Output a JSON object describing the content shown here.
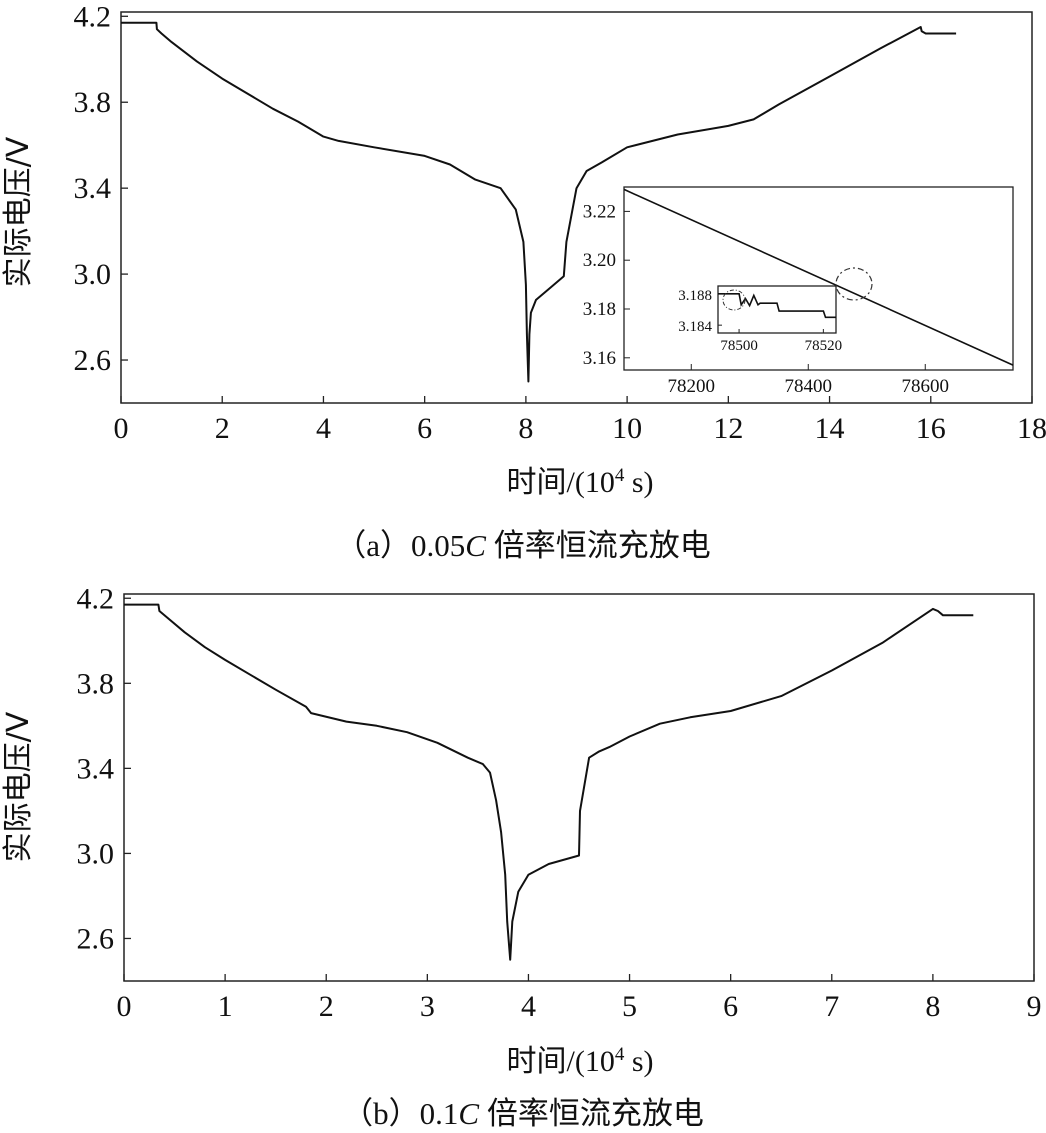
{
  "chart_data": [
    {
      "type": "line",
      "panel": "a",
      "caption": "（a）0.05C 倍率恒流充放电",
      "caption_parts": {
        "open": "（a）",
        "rate": "0.05",
        "c": "C",
        "rest": " 倍率恒流充放电"
      },
      "xlabel": "时间/(10⁴ s)",
      "xlabel_parts": {
        "pre": "时间/(10",
        "sup": "4",
        "post": " s)"
      },
      "ylabel": "实际电压/V",
      "xlim": [
        0,
        18
      ],
      "ylim": [
        2.4,
        4.22
      ],
      "x_ticks": [
        "0",
        "2",
        "4",
        "6",
        "8",
        "10",
        "12",
        "14",
        "16",
        "18"
      ],
      "y_ticks": [
        "4.2",
        "3.8",
        "3.4",
        "3.0",
        "2.6"
      ],
      "series": [
        {
          "x": [
            0.0,
            0.7,
            0.71,
            0.8,
            1.0,
            1.5,
            2.0,
            2.5,
            3.0,
            3.5,
            4.0,
            4.3,
            5.0,
            6.0,
            6.5,
            7.0,
            7.5,
            7.8,
            7.95,
            8.0,
            8.02,
            8.05,
            8.07,
            8.1,
            8.2,
            8.5,
            8.75,
            8.8,
            9.0,
            9.2,
            9.5,
            10.0,
            11.0,
            12.0,
            12.5,
            13.0,
            14.0,
            15.0,
            15.8,
            15.82,
            15.9,
            16.5
          ],
          "y": [
            4.17,
            4.17,
            4.14,
            4.12,
            4.08,
            3.99,
            3.91,
            3.84,
            3.77,
            3.71,
            3.64,
            3.62,
            3.59,
            3.55,
            3.51,
            3.44,
            3.4,
            3.3,
            3.15,
            2.95,
            2.72,
            2.5,
            2.72,
            2.82,
            2.88,
            2.94,
            2.99,
            3.15,
            3.4,
            3.48,
            3.52,
            3.59,
            3.65,
            3.69,
            3.72,
            3.79,
            3.92,
            4.05,
            4.15,
            4.13,
            4.12,
            4.12
          ]
        }
      ],
      "inset": {
        "xlim": [
          78085,
          78750
        ],
        "ylim": [
          3.155,
          3.23
        ],
        "x_ticks": [
          "78200",
          "78400",
          "78600"
        ],
        "y_ticks": [
          "3.22",
          "3.20",
          "3.18",
          "3.16"
        ],
        "series": [
          {
            "x": [
              78085,
              78750
            ],
            "y": [
              3.229,
              3.157
            ]
          }
        ],
        "inner": {
          "xlim": [
            78495,
            78523
          ],
          "ylim": [
            3.183,
            3.189
          ],
          "x_ticks": [
            "78500",
            "78520"
          ],
          "y_ticks": [
            "3.188",
            "3.184"
          ],
          "series": [
            {
              "x": [
                78495,
                78500,
                78500.5,
                78501.5,
                78502.5,
                78503.5,
                78504.5,
                78505,
                78509,
                78509.5,
                78520,
                78520.5,
                78523
              ],
              "y": [
                3.188,
                3.188,
                3.1866,
                3.1874,
                3.1865,
                3.1878,
                3.1866,
                3.1868,
                3.1868,
                3.1858,
                3.1858,
                3.185,
                3.185
              ]
            }
          ]
        }
      }
    },
    {
      "type": "line",
      "panel": "b",
      "caption": "（b）0.1C 倍率恒流充放电",
      "caption_parts": {
        "open": "（b）",
        "rate": "0.1",
        "c": "C",
        "rest": " 倍率恒流充放电"
      },
      "xlabel": "时间/(10⁴ s)",
      "xlabel_parts": {
        "pre": "时间/(10",
        "sup": "4",
        "post": " s)"
      },
      "ylabel": "实际电压/V",
      "xlim": [
        0,
        9
      ],
      "ylim": [
        2.4,
        4.22
      ],
      "x_ticks": [
        "0",
        "1",
        "2",
        "3",
        "4",
        "5",
        "6",
        "7",
        "8",
        "9"
      ],
      "y_ticks": [
        "4.2",
        "3.8",
        "3.4",
        "3.0",
        "2.6"
      ],
      "series": [
        {
          "x": [
            0.0,
            0.34,
            0.35,
            0.45,
            0.6,
            0.8,
            1.0,
            1.25,
            1.5,
            1.8,
            1.85,
            2.2,
            2.5,
            2.8,
            3.1,
            3.4,
            3.55,
            3.62,
            3.68,
            3.73,
            3.77,
            3.79,
            3.82,
            3.84,
            3.9,
            4.0,
            4.2,
            4.5,
            4.51,
            4.6,
            4.7,
            4.8,
            5.0,
            5.3,
            5.6,
            6.0,
            6.5,
            7.0,
            7.5,
            8.0,
            8.05,
            8.1,
            8.4
          ],
          "y": [
            4.17,
            4.17,
            4.14,
            4.1,
            4.04,
            3.97,
            3.91,
            3.84,
            3.77,
            3.69,
            3.66,
            3.62,
            3.6,
            3.57,
            3.52,
            3.45,
            3.42,
            3.38,
            3.25,
            3.1,
            2.9,
            2.68,
            2.5,
            2.68,
            2.82,
            2.9,
            2.95,
            2.99,
            3.2,
            3.45,
            3.48,
            3.5,
            3.55,
            3.61,
            3.64,
            3.67,
            3.74,
            3.86,
            3.99,
            4.15,
            4.14,
            4.12,
            4.12
          ]
        }
      ]
    }
  ]
}
